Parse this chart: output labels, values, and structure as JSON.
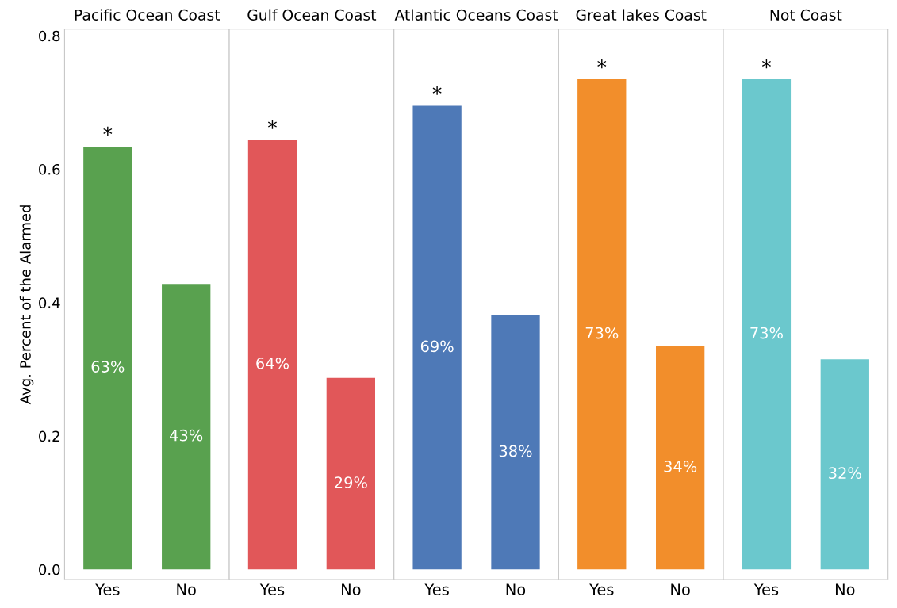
{
  "chart_data": [
    {
      "type": "bar",
      "title": "Pacific Ocean Coast",
      "ylabel": "Avg. Percent of the Alarmed",
      "categories": [
        "Yes",
        "No"
      ],
      "values": [
        0.634,
        0.428
      ],
      "color": "#59a14f",
      "value_labels": [
        "63%",
        "43%"
      ],
      "ylim": [
        -0.015,
        0.81
      ],
      "yticks": [
        {
          "value": 0,
          "label": "0.0"
        },
        0.2,
        0.4,
        0.6,
        0.8
      ],
      "grid": false,
      "annotations": [
        {
          "text": "*",
          "x": "Yes",
          "y": 0.634
        }
      ]
    },
    {
      "type": "bar",
      "title": "Gulf Ocean Coast",
      "categories": [
        "Yes",
        "No"
      ],
      "values": [
        0.644,
        0.287
      ],
      "color": "#e15759",
      "value_labels": [
        "64%",
        "29%"
      ],
      "ylim": [
        -0.015,
        0.81
      ],
      "tick_labels": "x",
      "grid": false,
      "annotations": [
        {
          "text": "*",
          "x": "Yes",
          "y": 0.644
        }
      ]
    },
    {
      "type": "bar",
      "title": "Atlantic Oceans Coast",
      "categories": [
        "Yes",
        "No"
      ],
      "values": [
        0.695,
        0.381
      ],
      "color": "#4e79b7",
      "value_labels": [
        "69%",
        "38%"
      ],
      "ylim": [
        -0.015,
        0.81
      ],
      "tick_labels": "x",
      "grid": false,
      "annotations": [
        {
          "text": "*",
          "x": "Yes",
          "y": 0.695
        }
      ]
    },
    {
      "type": "bar",
      "title": "Great lakes Coast",
      "categories": [
        "Yes",
        "No"
      ],
      "values": [
        0.735,
        0.335
      ],
      "color": "#f28e2b",
      "value_labels": [
        "73%",
        "34%"
      ],
      "ylim": [
        -0.015,
        0.81
      ],
      "tick_labels": "x",
      "grid": false,
      "annotations": [
        {
          "text": "*",
          "x": "Yes",
          "y": 0.735
        }
      ]
    },
    {
      "type": "bar",
      "title": "Not Coast",
      "categories": [
        "Yes",
        "No"
      ],
      "values": [
        0.735,
        0.315
      ],
      "color": "#6bc8cd",
      "value_labels": [
        "73%",
        "32%"
      ],
      "ylim": [
        -0.015,
        0.81
      ],
      "tick_labels": "x",
      "grid": false,
      "annotations": [
        {
          "text": "*",
          "x": "Yes",
          "y": 0.735
        }
      ]
    }
  ]
}
